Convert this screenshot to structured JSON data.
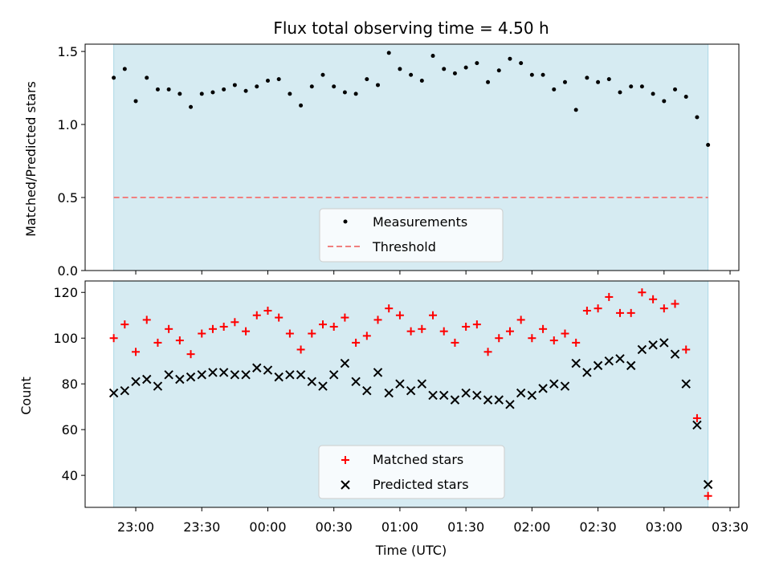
{
  "title": "Flux total observing time = 4.50 h",
  "colors": {
    "shade": "#add8e6",
    "threshold": "#f08080",
    "matched": "#ff0000",
    "predicted": "#000000",
    "measurement": "#000000"
  },
  "chart_data": [
    {
      "type": "scatter",
      "ylabel": "Matched/Predicted stars",
      "ylim": [
        0,
        1.55
      ],
      "yticks": [
        "0.0",
        "0.5",
        "1.0",
        "1.5"
      ],
      "yticks_values": [
        0,
        0.5,
        1.0,
        1.5
      ],
      "legend_position": "lower center",
      "threshold": 0.5,
      "shaded_span": [
        "22:50",
        "03:20"
      ],
      "series": [
        {
          "name": "Measurements",
          "marker": "dot",
          "x": [
            "22:50",
            "22:55",
            "23:00",
            "23:05",
            "23:10",
            "23:15",
            "23:20",
            "23:25",
            "23:30",
            "23:35",
            "23:40",
            "23:45",
            "23:50",
            "23:55",
            "00:00",
            "00:05",
            "00:10",
            "00:15",
            "00:20",
            "00:25",
            "00:30",
            "00:35",
            "00:40",
            "00:45",
            "00:50",
            "00:55",
            "01:00",
            "01:05",
            "01:10",
            "01:15",
            "01:20",
            "01:25",
            "01:30",
            "01:35",
            "01:40",
            "01:45",
            "01:50",
            "01:55",
            "02:00",
            "02:05",
            "02:10",
            "02:15",
            "02:20",
            "02:25",
            "02:30",
            "02:35",
            "02:40",
            "02:45",
            "02:50",
            "02:55",
            "03:00",
            "03:05",
            "03:10",
            "03:15",
            "03:20"
          ],
          "y": [
            1.32,
            1.38,
            1.16,
            1.32,
            1.24,
            1.24,
            1.21,
            1.12,
            1.21,
            1.22,
            1.24,
            1.27,
            1.23,
            1.26,
            1.3,
            1.31,
            1.21,
            1.13,
            1.26,
            1.34,
            1.26,
            1.22,
            1.21,
            1.31,
            1.27,
            1.49,
            1.38,
            1.34,
            1.3,
            1.47,
            1.38,
            1.35,
            1.39,
            1.42,
            1.29,
            1.37,
            1.45,
            1.42,
            1.34,
            1.34,
            1.24,
            1.29,
            1.1,
            1.32,
            1.29,
            1.31,
            1.22,
            1.26,
            1.26,
            1.21,
            1.16,
            1.24,
            1.19,
            1.05,
            0.86
          ]
        },
        {
          "name": "Threshold",
          "style": "dashed"
        }
      ]
    },
    {
      "type": "scatter",
      "xlabel": "Time (UTC)",
      "ylabel": "Count",
      "ylim": [
        26,
        125
      ],
      "yticks": [
        "40",
        "60",
        "80",
        "100",
        "120"
      ],
      "yticks_values": [
        40,
        60,
        80,
        100,
        120
      ],
      "xticks": [
        "23:00",
        "23:30",
        "00:00",
        "00:30",
        "01:00",
        "01:30",
        "02:00",
        "02:30",
        "03:00",
        "03:30"
      ],
      "legend_position": "lower center",
      "series": [
        {
          "name": "Matched stars",
          "marker": "plus",
          "x": [
            "22:50",
            "22:55",
            "23:00",
            "23:05",
            "23:10",
            "23:15",
            "23:20",
            "23:25",
            "23:30",
            "23:35",
            "23:40",
            "23:45",
            "23:50",
            "23:55",
            "00:00",
            "00:05",
            "00:10",
            "00:15",
            "00:20",
            "00:25",
            "00:30",
            "00:35",
            "00:40",
            "00:45",
            "00:50",
            "00:55",
            "01:00",
            "01:05",
            "01:10",
            "01:15",
            "01:20",
            "01:25",
            "01:30",
            "01:35",
            "01:40",
            "01:45",
            "01:50",
            "01:55",
            "02:00",
            "02:05",
            "02:10",
            "02:15",
            "02:20",
            "02:25",
            "02:30",
            "02:35",
            "02:40",
            "02:45",
            "02:50",
            "02:55",
            "03:00",
            "03:05",
            "03:10",
            "03:15",
            "03:20"
          ],
          "y": [
            100,
            106,
            94,
            108,
            98,
            104,
            99,
            93,
            102,
            104,
            105,
            107,
            103,
            110,
            112,
            109,
            102,
            95,
            102,
            106,
            105,
            109,
            98,
            101,
            108,
            113,
            110,
            103,
            104,
            110,
            103,
            98,
            105,
            106,
            94,
            100,
            103,
            108,
            100,
            104,
            99,
            102,
            98,
            112,
            113,
            118,
            111,
            111,
            120,
            117,
            113,
            115,
            95,
            65,
            31
          ]
        },
        {
          "name": "Predicted stars",
          "marker": "x",
          "x": [
            "22:50",
            "22:55",
            "23:00",
            "23:05",
            "23:10",
            "23:15",
            "23:20",
            "23:25",
            "23:30",
            "23:35",
            "23:40",
            "23:45",
            "23:50",
            "23:55",
            "00:00",
            "00:05",
            "00:10",
            "00:15",
            "00:20",
            "00:25",
            "00:30",
            "00:35",
            "00:40",
            "00:45",
            "00:50",
            "00:55",
            "01:00",
            "01:05",
            "01:10",
            "01:15",
            "01:20",
            "01:25",
            "01:30",
            "01:35",
            "01:40",
            "01:45",
            "01:50",
            "01:55",
            "02:00",
            "02:05",
            "02:10",
            "02:15",
            "02:20",
            "02:25",
            "02:30",
            "02:35",
            "02:40",
            "02:45",
            "02:50",
            "02:55",
            "03:00",
            "03:05",
            "03:10",
            "03:15",
            "03:20"
          ],
          "y": [
            76,
            77,
            81,
            82,
            79,
            84,
            82,
            83,
            84,
            85,
            85,
            84,
            84,
            87,
            86,
            83,
            84,
            84,
            81,
            79,
            84,
            89,
            81,
            77,
            85,
            76,
            80,
            77,
            80,
            75,
            75,
            73,
            76,
            75,
            73,
            73,
            71,
            76,
            75,
            78,
            80,
            79,
            89,
            85,
            88,
            90,
            91,
            88,
            95,
            97,
            98,
            93,
            80,
            62,
            36
          ]
        }
      ]
    }
  ]
}
